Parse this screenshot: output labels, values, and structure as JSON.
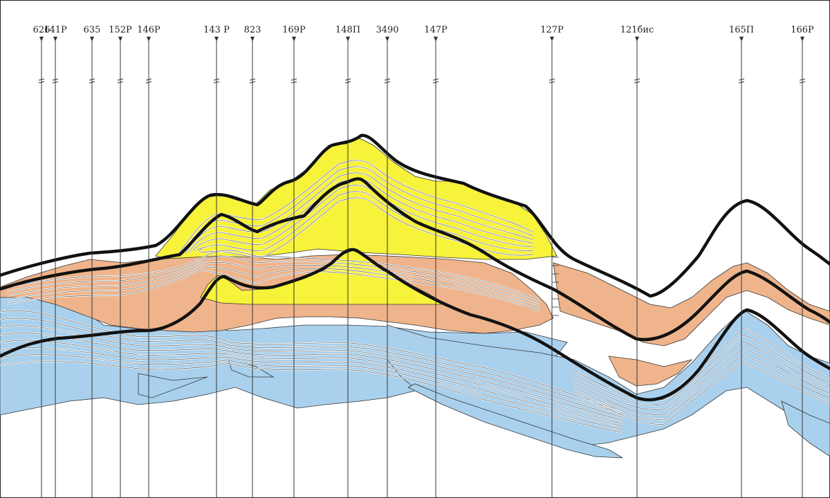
{
  "section": {
    "wells": [
      {
        "id": "626"
      },
      {
        "id": "141P"
      },
      {
        "id": "635"
      },
      {
        "id": "152P"
      },
      {
        "id": "146P"
      },
      {
        "id": "143 P"
      },
      {
        "id": "823"
      },
      {
        "id": "169P"
      },
      {
        "id": "148П"
      },
      {
        "id": "3490"
      },
      {
        "id": "147P"
      },
      {
        "id": "127P"
      },
      {
        "id": "121бис"
      },
      {
        "id": "165П"
      },
      {
        "id": "166P"
      }
    ],
    "colors": {
      "yellow": "#f7f23a",
      "orange": "#efb48b",
      "blue": "#a9d1ee",
      "line": "#111111",
      "well_line": "#333333"
    }
  }
}
